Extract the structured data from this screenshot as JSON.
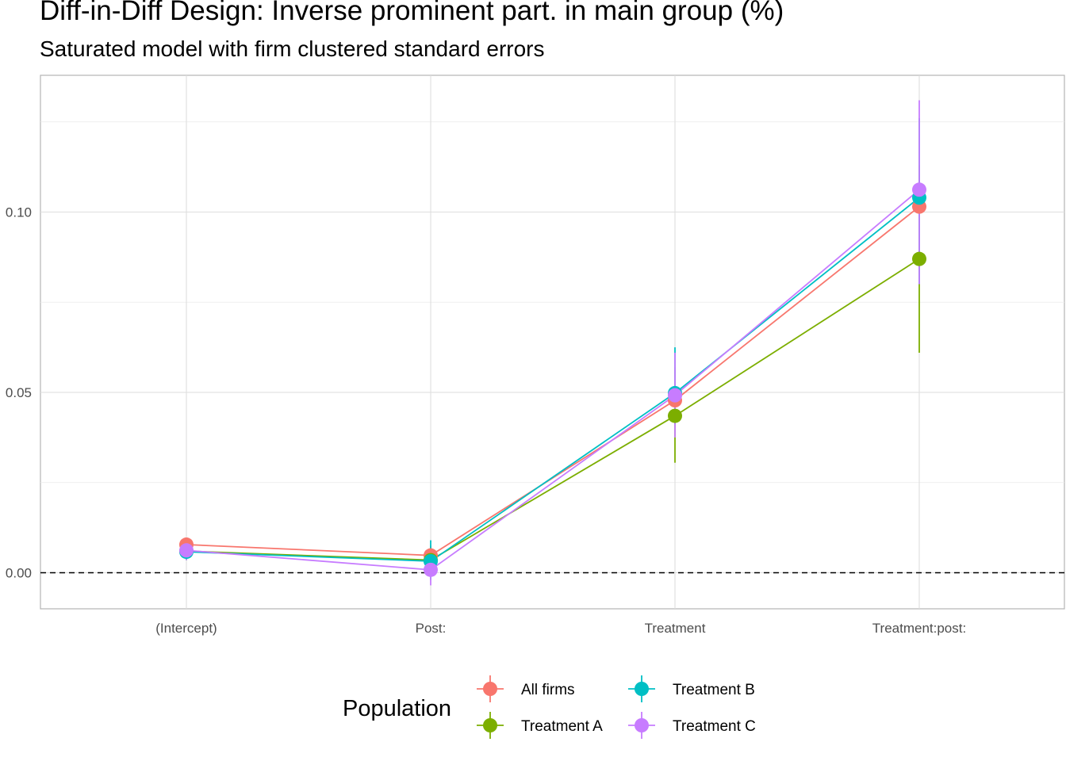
{
  "chart_data": {
    "type": "line",
    "title": "Diff-in-Diff Design: Inverse prominent part. in main group (%)",
    "subtitle": "Saturated model with firm clustered standard errors",
    "xlabel": "",
    "ylabel": "",
    "categories": [
      "(Intercept)",
      "Post:",
      "Treatment",
      "Treatment:post:"
    ],
    "y_ticks": [
      0.0,
      0.05,
      0.1
    ],
    "y_tick_labels": [
      "0.00",
      "0.05",
      "0.10"
    ],
    "ylim": [
      -0.01,
      0.137
    ],
    "reference_line": {
      "y": 0,
      "style": "dashed"
    },
    "grid": true,
    "legend": {
      "title": "Population",
      "position": "bottom"
    },
    "series": [
      {
        "name": "All firms",
        "color": "#F8766D",
        "values": [
          0.0078,
          0.0048,
          0.0478,
          0.1015
        ],
        "lower": [
          0.006,
          0.002,
          0.042,
          0.096
        ],
        "upper": [
          0.0096,
          0.0075,
          0.054,
          0.107
        ]
      },
      {
        "name": "Treatment A",
        "color": "#7CAE00",
        "values": [
          0.006,
          0.0035,
          0.0435,
          0.087
        ],
        "lower": [
          0.0035,
          0.0,
          0.0305,
          0.061
        ],
        "upper": [
          0.0085,
          0.007,
          0.057,
          0.113
        ]
      },
      {
        "name": "Treatment B",
        "color": "#00BFC4",
        "values": [
          0.0058,
          0.0032,
          0.0498,
          0.104
        ],
        "lower": [
          0.0035,
          -0.002,
          0.041,
          0.08
        ],
        "upper": [
          0.008,
          0.009,
          0.0625,
          0.126
        ]
      },
      {
        "name": "Treatment C",
        "color": "#C77CFF",
        "values": [
          0.0062,
          0.0008,
          0.0492,
          0.1062
        ],
        "lower": [
          0.0035,
          -0.0035,
          0.0375,
          0.08
        ],
        "upper": [
          0.009,
          0.006,
          0.061,
          0.131
        ]
      }
    ]
  }
}
